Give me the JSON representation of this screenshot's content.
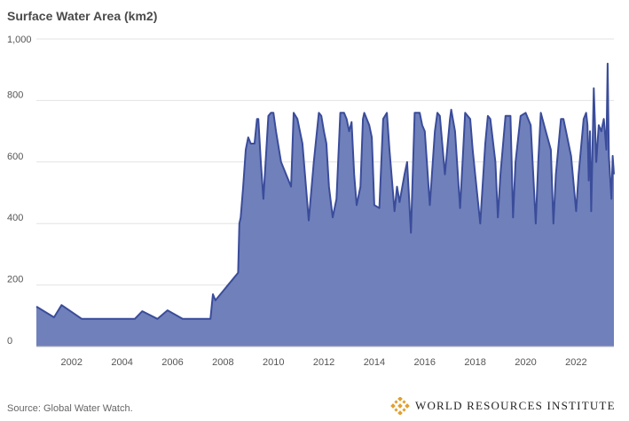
{
  "chart_data": {
    "type": "area",
    "title": "Surface Water Area (km2)",
    "xlabel": "",
    "ylabel": "",
    "xlim": [
      2000.6,
      2023.5
    ],
    "ylim": [
      0,
      1000
    ],
    "yticks": [
      0,
      200,
      400,
      600,
      800,
      1000
    ],
    "ytick_labels": [
      "0",
      "200",
      "400",
      "600",
      "800",
      "1,000"
    ],
    "xticks": [
      2002,
      2004,
      2006,
      2008,
      2010,
      2012,
      2014,
      2016,
      2018,
      2020,
      2022
    ],
    "xtick_labels": [
      "2002",
      "2004",
      "2006",
      "2008",
      "2010",
      "2012",
      "2014",
      "2016",
      "2018",
      "2020",
      "2022"
    ],
    "grid": true,
    "series": [
      {
        "color": "#7080bb",
        "line_color": "#3a4c9a",
        "x": [
          2000.6,
          2001.3,
          2001.6,
          2002.4,
          2004.5,
          2004.8,
          2005.4,
          2005.8,
          2006.4,
          2007.5,
          2007.6,
          2007.7,
          2008.6,
          2008.65,
          2008.7,
          2008.8,
          2008.9,
          2009.0,
          2009.1,
          2009.25,
          2009.35,
          2009.4,
          2009.5,
          2009.6,
          2009.8,
          2009.9,
          2010.0,
          2010.1,
          2010.3,
          2010.7,
          2010.8,
          2010.95,
          2011.15,
          2011.4,
          2011.6,
          2011.8,
          2011.9,
          2012.0,
          2012.1,
          2012.2,
          2012.35,
          2012.5,
          2012.65,
          2012.8,
          2012.9,
          2013.0,
          2013.1,
          2013.2,
          2013.3,
          2013.45,
          2013.55,
          2013.6,
          2013.8,
          2013.9,
          2014.0,
          2014.2,
          2014.35,
          2014.5,
          2014.6,
          2014.8,
          2014.9,
          2015.0,
          2015.2,
          2015.3,
          2015.45,
          2015.6,
          2015.8,
          2015.9,
          2016.0,
          2016.2,
          2016.4,
          2016.5,
          2016.6,
          2016.8,
          2017.0,
          2017.05,
          2017.2,
          2017.4,
          2017.5,
          2017.6,
          2017.8,
          2017.9,
          2018.0,
          2018.2,
          2018.4,
          2018.5,
          2018.6,
          2018.8,
          2018.9,
          2019.0,
          2019.2,
          2019.4,
          2019.5,
          2019.6,
          2019.8,
          2020.0,
          2020.2,
          2020.4,
          2020.5,
          2020.6,
          2020.8,
          2021.0,
          2021.1,
          2021.2,
          2021.4,
          2021.5,
          2021.6,
          2021.8,
          2022.0,
          2022.1,
          2022.3,
          2022.4,
          2022.45,
          2022.5,
          2022.55,
          2022.6,
          2022.7,
          2022.8,
          2022.9,
          2023.0,
          2023.1,
          2023.15,
          2023.2,
          2023.25,
          2023.3,
          2023.4,
          2023.45,
          2023.5
        ],
        "values": [
          130,
          95,
          135,
          90,
          90,
          115,
          90,
          118,
          90,
          90,
          170,
          150,
          240,
          400,
          420,
          520,
          640,
          680,
          660,
          660,
          740,
          740,
          600,
          480,
          750,
          760,
          760,
          700,
          600,
          520,
          760,
          740,
          660,
          410,
          600,
          760,
          750,
          700,
          660,
          520,
          420,
          480,
          760,
          760,
          740,
          700,
          730,
          560,
          460,
          520,
          740,
          760,
          720,
          680,
          460,
          450,
          740,
          760,
          640,
          440,
          520,
          470,
          560,
          600,
          370,
          760,
          760,
          720,
          700,
          460,
          700,
          760,
          750,
          560,
          740,
          770,
          700,
          450,
          600,
          760,
          740,
          640,
          560,
          400,
          660,
          750,
          740,
          600,
          420,
          560,
          750,
          750,
          420,
          600,
          750,
          760,
          720,
          400,
          600,
          760,
          700,
          640,
          400,
          560,
          740,
          740,
          700,
          620,
          440,
          560,
          740,
          760,
          720,
          540,
          700,
          440,
          840,
          600,
          720,
          700,
          740,
          690,
          640,
          920,
          620,
          480,
          620,
          560
        ]
      }
    ]
  },
  "footer": {
    "source": "Source: Global Water Watch.",
    "brand": "WORLD RESOURCES INSTITUTE"
  }
}
